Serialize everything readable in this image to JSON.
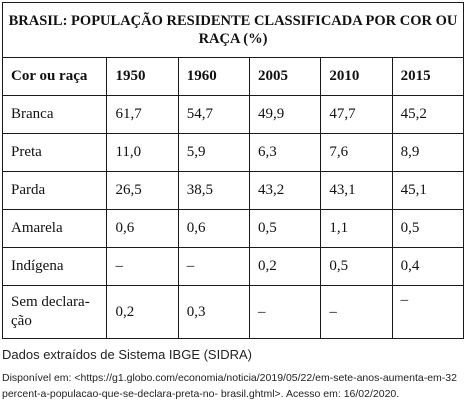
{
  "table": {
    "title": "BRASIL: POPULAÇÃO RESIDENTE CLASSIFICADA POR COR OU RAÇA (%)",
    "header": [
      "Cor ou raça",
      "1950",
      "1960",
      "2005",
      "2010",
      "2015"
    ],
    "rows": [
      {
        "label": "Branca",
        "values": [
          "61,7",
          "54,7",
          "49,9",
          "47,7",
          "45,2"
        ]
      },
      {
        "label": "Preta",
        "values": [
          "11,0",
          "5,9",
          "6,3",
          "7,6",
          "8,9"
        ]
      },
      {
        "label": "Parda",
        "values": [
          "26,5",
          "38,5",
          "43,2",
          "43,1",
          "45,1"
        ]
      },
      {
        "label": "Amarela",
        "values": [
          "0,6",
          "0,6",
          "0,5",
          "1,1",
          "0,5"
        ]
      },
      {
        "label": "Indígena",
        "values": [
          "–",
          "–",
          "0,2",
          "0,5",
          "0,4"
        ]
      },
      {
        "label": "Sem declara-\nção",
        "values": [
          "0,2",
          "0,3",
          "–",
          "–",
          "–"
        ]
      }
    ]
  },
  "notes": {
    "source": "Dados extraídos de Sistema IBGE (SIDRA)",
    "availability": "Disponível em: <https://g1.globo.com/economia/noticia/2019/05/22/em-sete-anos-aumenta-em-32 percent-a-populacao-que-se-declara-preta-no-  brasil.ghtml>. Acesso em: 16/02/2020."
  }
}
